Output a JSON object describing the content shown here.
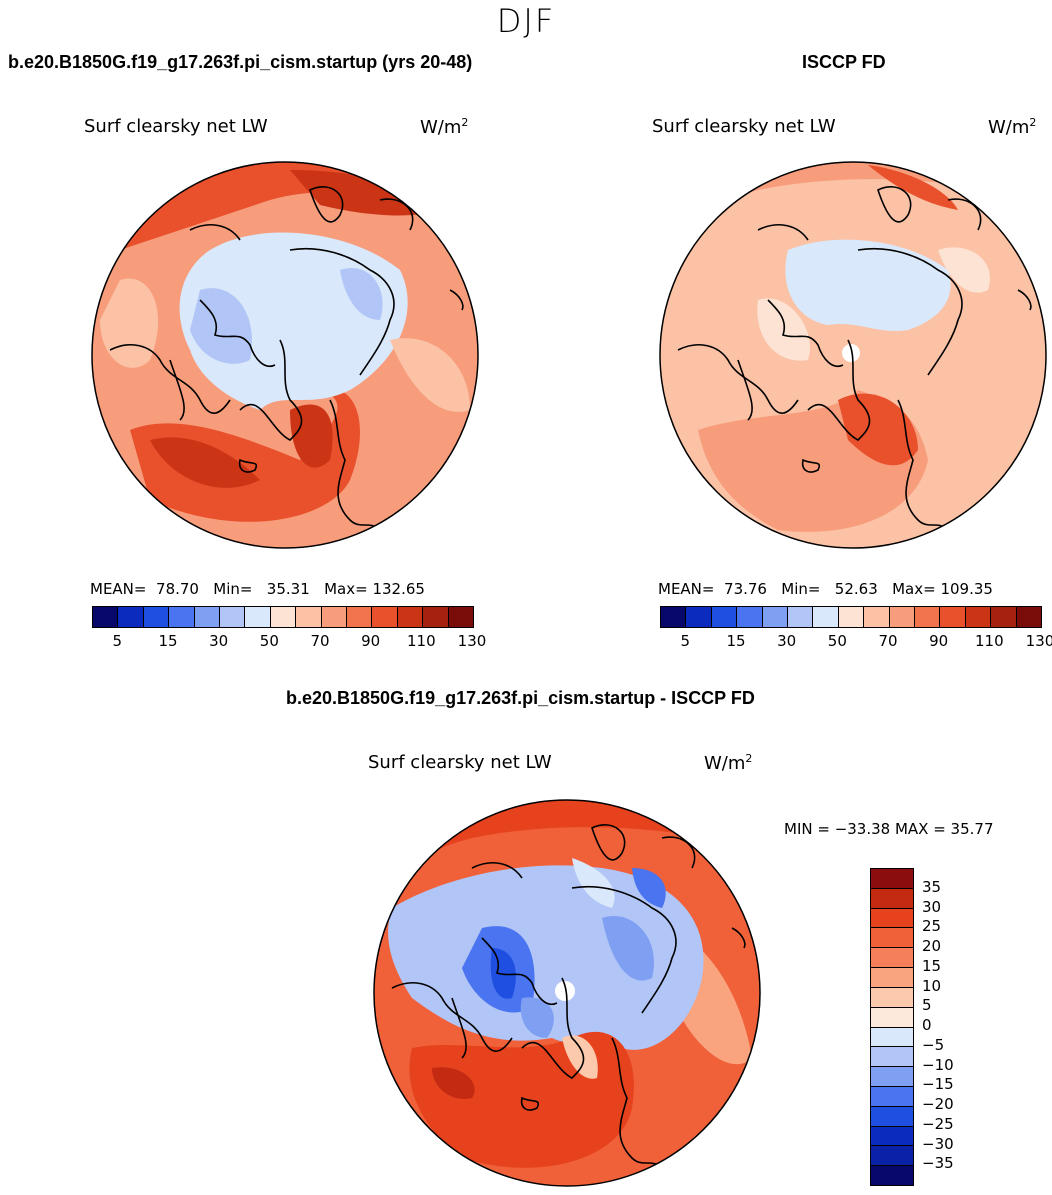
{
  "season": "DJF",
  "panels": {
    "model": {
      "case_title": "b.e20.B1850G.f19_g17.263f.pi_cism.startup (yrs 20-48)",
      "variable": "Surf clearsky net LW",
      "units": "W/m",
      "units_exp": "2",
      "mean_label": "MEAN=",
      "mean": "78.70",
      "min_label": "Min=",
      "min": "35.31",
      "max_label": "Max=",
      "max": "132.65"
    },
    "obs": {
      "case_title": "ISCCP FD",
      "variable": "Surf clearsky net LW",
      "units": "W/m",
      "units_exp": "2",
      "mean_label": "MEAN=",
      "mean": "73.76",
      "min_label": "Min=",
      "min": "52.63",
      "max_label": "Max=",
      "max": "109.35"
    },
    "diff": {
      "case_title": "b.e20.B1850G.f19_g17.263f.pi_cism.startup - ISCCP FD",
      "variable": "Surf clearsky net LW",
      "units": "W/m",
      "units_exp": "2",
      "minmax": "MIN = −33.38 MAX =  35.77"
    }
  },
  "colorbar_abs": {
    "colors": [
      "#08086b",
      "#0a2bbd",
      "#1f4fe0",
      "#4a74f0",
      "#7f9ff2",
      "#b1c6f6",
      "#d9e8fa",
      "#fde3d3",
      "#fbc2a6",
      "#f79d7c",
      "#f2744c",
      "#e8512c",
      "#cb3516",
      "#a52210",
      "#7a0c09"
    ],
    "tick_labels": [
      "5",
      "15",
      "30",
      "50",
      "70",
      "90",
      "110",
      "130"
    ]
  },
  "colorbar_diff": {
    "colors": [
      "#8b0d0d",
      "#c42a12",
      "#e5421d",
      "#f0613a",
      "#f47f5a",
      "#f9a37f",
      "#fcc9ad",
      "#fde8dc",
      "#d9e8fa",
      "#b1c6f6",
      "#7f9ff2",
      "#4a74f0",
      "#1f4fe0",
      "#0a2bbd",
      "#0a22a8",
      "#08086b"
    ],
    "tick_labels": [
      "35",
      "30",
      "25",
      "20",
      "15",
      "10",
      "5",
      "0",
      "−5",
      "−10",
      "−15",
      "−20",
      "−25",
      "−30",
      "−35"
    ]
  },
  "map_colors": {
    "ocean_warm": "#f79d7c",
    "warm_high": "#e8512c",
    "warm_max": "#cb3516",
    "light_warm": "#fbc2a6",
    "pale": "#fde3d3",
    "cold_light": "#d9e8fa",
    "cold_mid": "#b1c6f6",
    "cold": "#4a74f0",
    "cold_dark": "#1f4fe0"
  }
}
